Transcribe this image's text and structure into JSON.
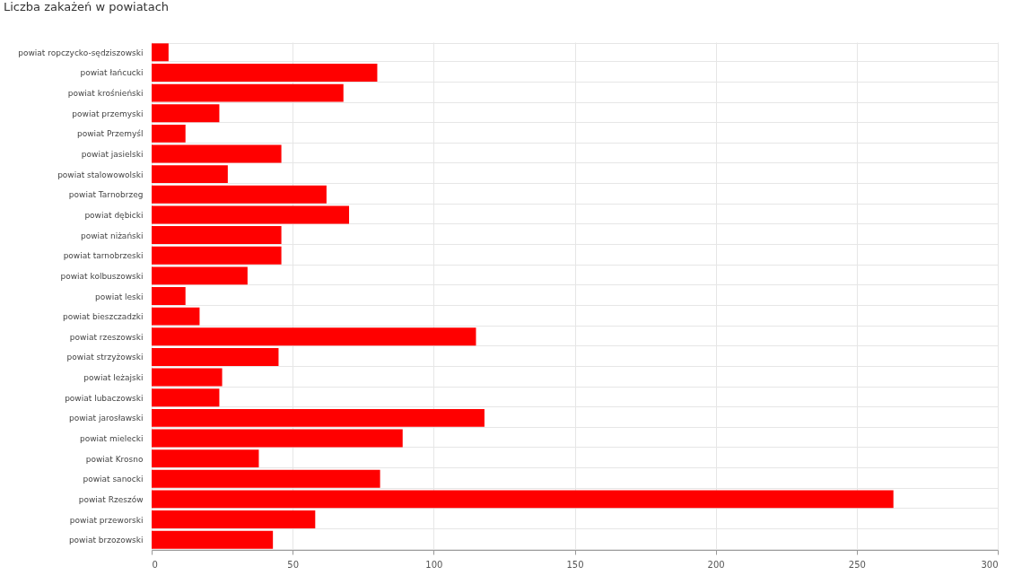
{
  "chart_data": {
    "type": "bar",
    "orientation": "horizontal",
    "title": "Liczba zakażeń w powiatach",
    "categories": [
      "powiat ropczycko-sędziszowski",
      "powiat łańcucki",
      "powiat krośnieński",
      "powiat przemyski",
      "powiat Przemyśl",
      "powiat jasielski",
      "powiat stalowowolski",
      "powiat Tarnobrzeg",
      "powiat dębicki",
      "powiat niżański",
      "powiat tarnobrzeski",
      "powiat kolbuszowski",
      "powiat leski",
      "powiat bieszczadzki",
      "powiat rzeszowski",
      "powiat strzyżowski",
      "powiat leżajski",
      "powiat lubaczowski",
      "powiat jarosławski",
      "powiat mielecki",
      "powiat Krosno",
      "powiat sanocki",
      "powiat Rzeszów",
      "powiat przeworski",
      "powiat brzozowski"
    ],
    "values": [
      6,
      80,
      68,
      24,
      12,
      46,
      27,
      62,
      70,
      46,
      46,
      34,
      12,
      17,
      115,
      45,
      25,
      24,
      118,
      89,
      38,
      81,
      263,
      58,
      43
    ],
    "color": "#ff0000",
    "xlim": [
      0,
      300
    ],
    "xticks": [
      0,
      50,
      100,
      150,
      200,
      250,
      300
    ],
    "grid": true
  }
}
